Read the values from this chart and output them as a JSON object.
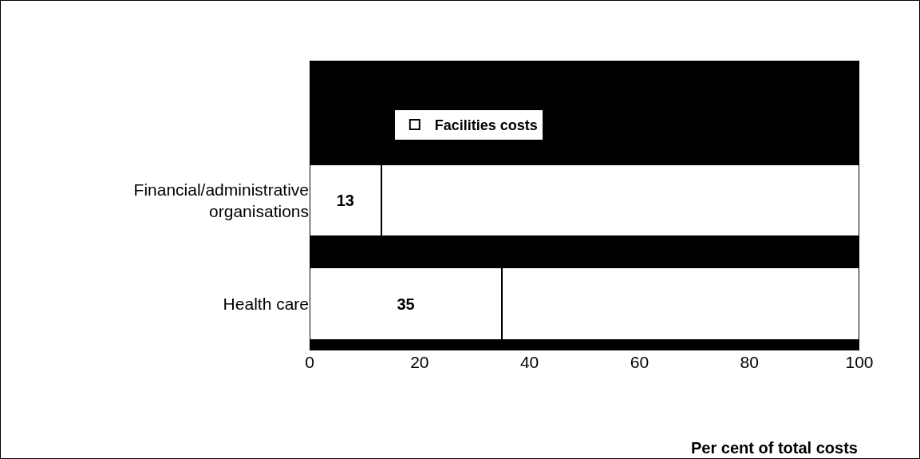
{
  "chart_data": {
    "type": "bar",
    "orientation": "horizontal",
    "stacked": true,
    "categories": [
      "Financial/administrative organisations",
      "Health care"
    ],
    "series": [
      {
        "name": "Facilities costs",
        "color": "#ffffff",
        "values": [
          13,
          35
        ],
        "value_labels": [
          "13",
          "35"
        ]
      },
      {
        "color": "#ffffff",
        "values": [
          87,
          65
        ]
      }
    ],
    "xlim": [
      0,
      100
    ],
    "xticks": [
      0,
      20,
      40,
      60,
      80,
      100
    ],
    "xlabel": "Per cent of total costs",
    "grid": false,
    "legend": "top"
  }
}
